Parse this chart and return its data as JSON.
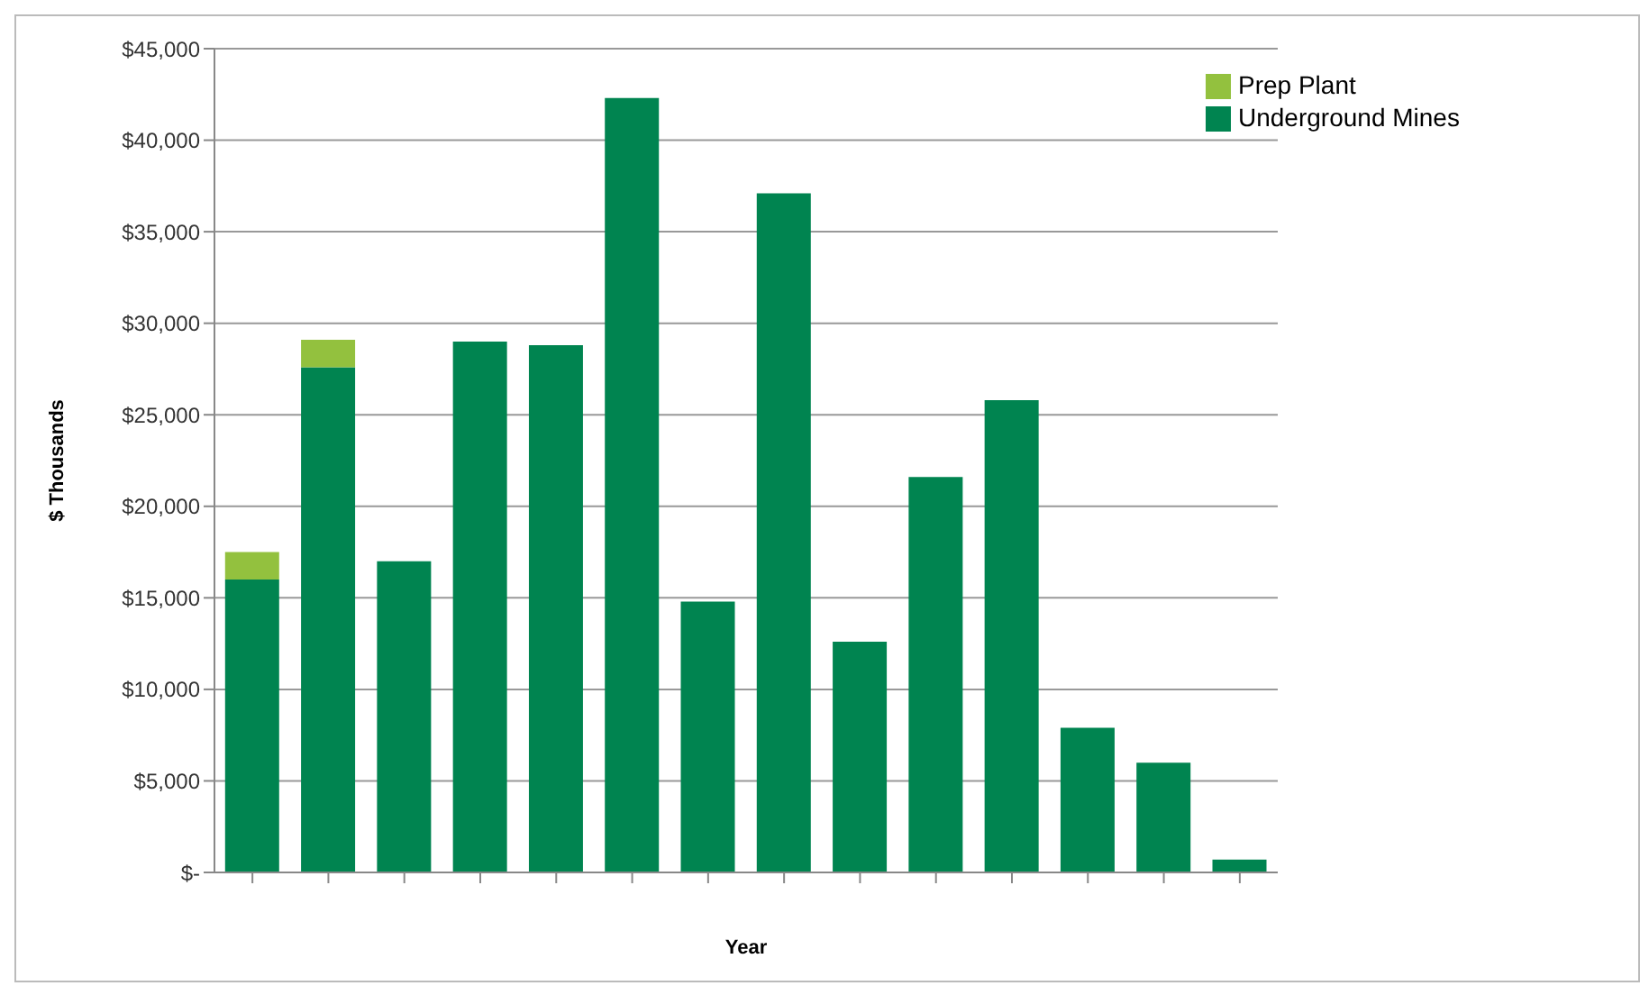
{
  "chart_data": {
    "type": "bar",
    "stacked": true,
    "xlabel": "Year",
    "ylabel": "$ Thousands",
    "categories": [
      null,
      null,
      null,
      null,
      null,
      null,
      null,
      null,
      null,
      null,
      null,
      null,
      null,
      null
    ],
    "series": [
      {
        "name": "Underground Mines",
        "color": "#008450",
        "values": [
          16000,
          27600,
          17000,
          29000,
          28800,
          42300,
          14800,
          37100,
          12600,
          21600,
          25800,
          7900,
          6000,
          700
        ]
      },
      {
        "name": "Prep Plant",
        "color": "#93c13e",
        "values": [
          1500,
          1500,
          null,
          null,
          null,
          null,
          null,
          null,
          null,
          null,
          null,
          null,
          null,
          null
        ]
      }
    ],
    "ylim": [
      0,
      45000
    ],
    "yticks": [
      {
        "value": 0,
        "label": "$-"
      },
      {
        "value": 5000,
        "label": "$5,000"
      },
      {
        "value": 10000,
        "label": "$10,000"
      },
      {
        "value": 15000,
        "label": "$15,000"
      },
      {
        "value": 20000,
        "label": "$20,000"
      },
      {
        "value": 25000,
        "label": "$25,000"
      },
      {
        "value": 30000,
        "label": "$30,000"
      },
      {
        "value": 35000,
        "label": "$35,000"
      },
      {
        "value": 40000,
        "label": "$40,000"
      },
      {
        "value": 45000,
        "label": "$45,000"
      }
    ],
    "grid": "y",
    "legend": "top right"
  }
}
